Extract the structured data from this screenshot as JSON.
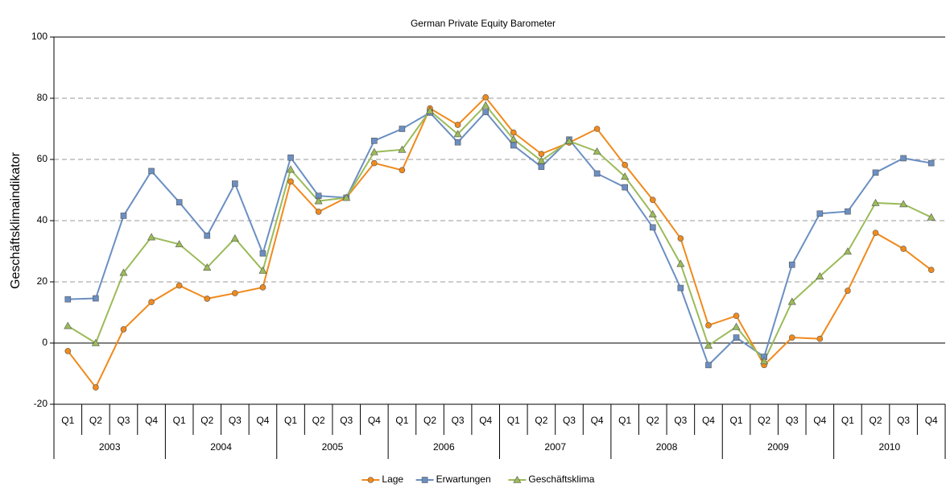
{
  "chart_data": {
    "type": "line",
    "title": "German Private Equity Barometer",
    "y_label": "Geschäftsklimaindikator",
    "categories": [
      "Q1",
      "Q2",
      "Q3",
      "Q4",
      "Q1",
      "Q2",
      "Q3",
      "Q4",
      "Q1",
      "Q2",
      "Q3",
      "Q4",
      "Q1",
      "Q2",
      "Q3",
      "Q4",
      "Q1",
      "Q2",
      "Q3",
      "Q4",
      "Q1",
      "Q2",
      "Q3",
      "Q4",
      "Q1",
      "Q2",
      "Q3",
      "Q4",
      "Q1",
      "Q2",
      "Q3",
      "Q4"
    ],
    "year_groups": [
      "2003",
      "2004",
      "2005",
      "2006",
      "2007",
      "2008",
      "2009",
      "2010"
    ],
    "ylim": [
      -20,
      100
    ],
    "yticks": [
      -20,
      0,
      20,
      40,
      60,
      80,
      100
    ],
    "grid": true,
    "legend": "bottom",
    "series": [
      {
        "name": "Lage",
        "color": "#f08a1c",
        "marker": "circle",
        "values": [
          -2.6,
          -14.5,
          4.5,
          13.4,
          18.8,
          14.5,
          16.3,
          18.2,
          52.8,
          42.9,
          47.5,
          58.8,
          56.5,
          76.7,
          71.3,
          80.3,
          68.8,
          61.8,
          65.5,
          70.0,
          58.2,
          46.8,
          34.2,
          5.8,
          8.9,
          -7.2,
          1.8,
          1.4,
          17.1,
          36.0,
          30.8,
          23.9
        ]
      },
      {
        "name": "Erwartungen",
        "color": "#6b8fc2",
        "marker": "square",
        "values": [
          14.3,
          14.6,
          41.6,
          56.2,
          46.0,
          35.1,
          52.1,
          29.3,
          60.6,
          48.1,
          47.5,
          66.1,
          70.0,
          75.3,
          65.6,
          75.5,
          64.6,
          57.6,
          66.5,
          55.4,
          50.9,
          37.8,
          18.0,
          -7.2,
          1.8,
          -4.5,
          25.6,
          42.3,
          43.0,
          55.7,
          60.4,
          58.8
        ]
      },
      {
        "name": "Geschäftsklima",
        "color": "#9bbb59",
        "marker": "triangle",
        "values": [
          5.6,
          0.0,
          23.0,
          34.6,
          32.3,
          24.7,
          34.2,
          23.7,
          56.7,
          46.4,
          47.5,
          62.4,
          63.2,
          75.9,
          68.3,
          77.7,
          66.6,
          59.6,
          66.0,
          62.6,
          54.4,
          42.1,
          25.9,
          -0.8,
          5.3,
          -5.9,
          13.5,
          21.8,
          29.9,
          45.8,
          45.4,
          41.1
        ]
      }
    ]
  }
}
